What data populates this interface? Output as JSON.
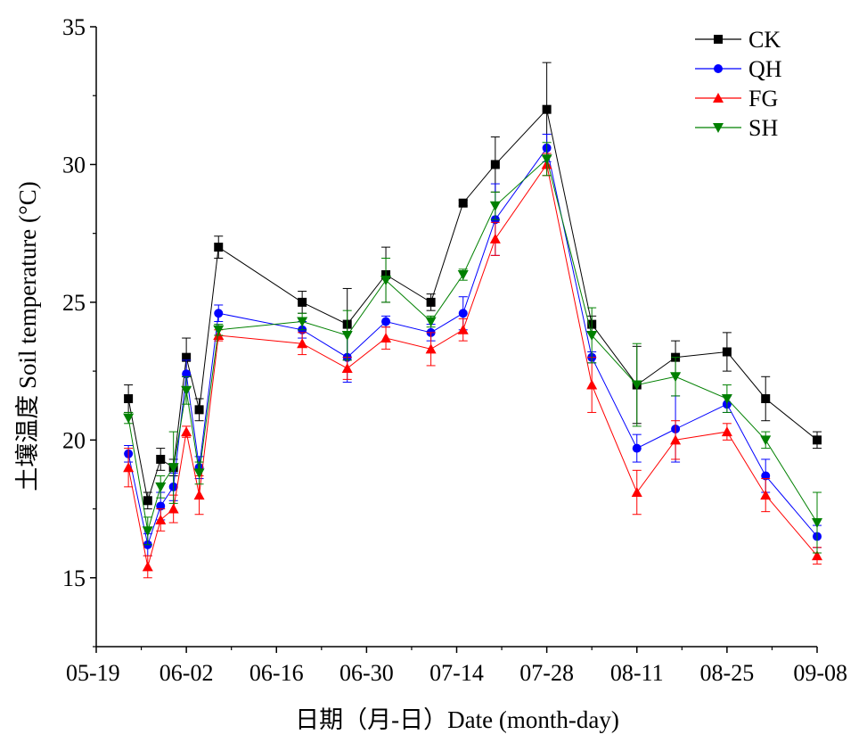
{
  "chart_data": {
    "type": "line",
    "title": "",
    "xlabel": "日期（月-日）Date (month-day)",
    "ylabel": "土壤温度  Soil temperature (°C)",
    "ylim": [
      12.5,
      35
    ],
    "yticks": [
      15,
      20,
      25,
      30,
      35
    ],
    "xlim": [
      "05-19",
      "09-08"
    ],
    "xticks": [
      "05-19",
      "06-02",
      "06-16",
      "06-30",
      "07-14",
      "07-28",
      "08-11",
      "08-25",
      "09-08"
    ],
    "x": [
      "05-24",
      "05-27",
      "05-29",
      "05-31",
      "06-02",
      "06-04",
      "06-07",
      "06-20",
      "06-27",
      "07-03",
      "07-10",
      "07-15",
      "07-20",
      "07-28",
      "08-04",
      "08-11",
      "08-17",
      "08-25",
      "08-31",
      "09-08"
    ],
    "legend_position": "top-right",
    "grid": false,
    "series": [
      {
        "name": "CK",
        "color": "#000000",
        "marker": "square",
        "values": [
          21.5,
          17.8,
          19.3,
          19.0,
          23.0,
          21.1,
          27.0,
          25.0,
          24.2,
          26.0,
          25.0,
          28.6,
          30.0,
          32.0,
          24.2,
          22.0,
          23.0,
          23.2,
          21.5,
          20.0
        ],
        "errors": [
          0.5,
          0.3,
          0.4,
          0.3,
          0.7,
          0.4,
          0.4,
          0.4,
          1.3,
          1.0,
          0.3,
          0.1,
          1.0,
          1.7,
          0.3,
          1.4,
          0.6,
          0.7,
          0.8,
          0.3
        ]
      },
      {
        "name": "QH",
        "color": "#0000ff",
        "marker": "circle",
        "values": [
          19.5,
          16.2,
          17.6,
          18.3,
          22.4,
          19.0,
          24.6,
          24.0,
          23.0,
          24.3,
          23.9,
          24.6,
          28.0,
          30.6,
          23.0,
          19.7,
          20.4,
          21.3,
          18.7,
          16.5
        ],
        "errors": [
          0.3,
          0.4,
          0.5,
          0.5,
          0.5,
          0.4,
          0.3,
          0.3,
          0.9,
          0.2,
          0.3,
          0.6,
          1.3,
          0.5,
          0.2,
          0.5,
          1.2,
          0.3,
          0.6,
          0.4
        ]
      },
      {
        "name": "FG",
        "color": "#ff0000",
        "marker": "triangle-up",
        "values": [
          19.0,
          15.4,
          17.1,
          17.5,
          20.3,
          18.0,
          23.8,
          23.5,
          22.6,
          23.7,
          23.3,
          24.0,
          27.3,
          30.0,
          22.0,
          18.1,
          20.0,
          20.3,
          18.0,
          15.8
        ],
        "errors": [
          0.7,
          0.4,
          0.4,
          0.5,
          0.2,
          0.7,
          0.2,
          0.4,
          0.4,
          0.4,
          0.6,
          0.4,
          0.6,
          0.4,
          1.0,
          0.8,
          0.7,
          0.3,
          0.6,
          0.3
        ]
      },
      {
        "name": "SH",
        "color": "#008000",
        "marker": "triangle-down",
        "values": [
          20.8,
          16.7,
          18.3,
          19.0,
          21.8,
          18.8,
          24.0,
          24.3,
          23.8,
          25.8,
          24.3,
          26.0,
          28.5,
          30.2,
          23.8,
          22.0,
          22.3,
          21.5,
          20.0,
          17.0
        ],
        "errors": [
          0.2,
          0.5,
          0.4,
          1.3,
          0.5,
          0.4,
          0.2,
          0.3,
          0.9,
          0.8,
          0.2,
          0.2,
          0.5,
          0.6,
          1.0,
          1.5,
          0.7,
          0.5,
          0.3,
          1.1
        ]
      }
    ]
  }
}
